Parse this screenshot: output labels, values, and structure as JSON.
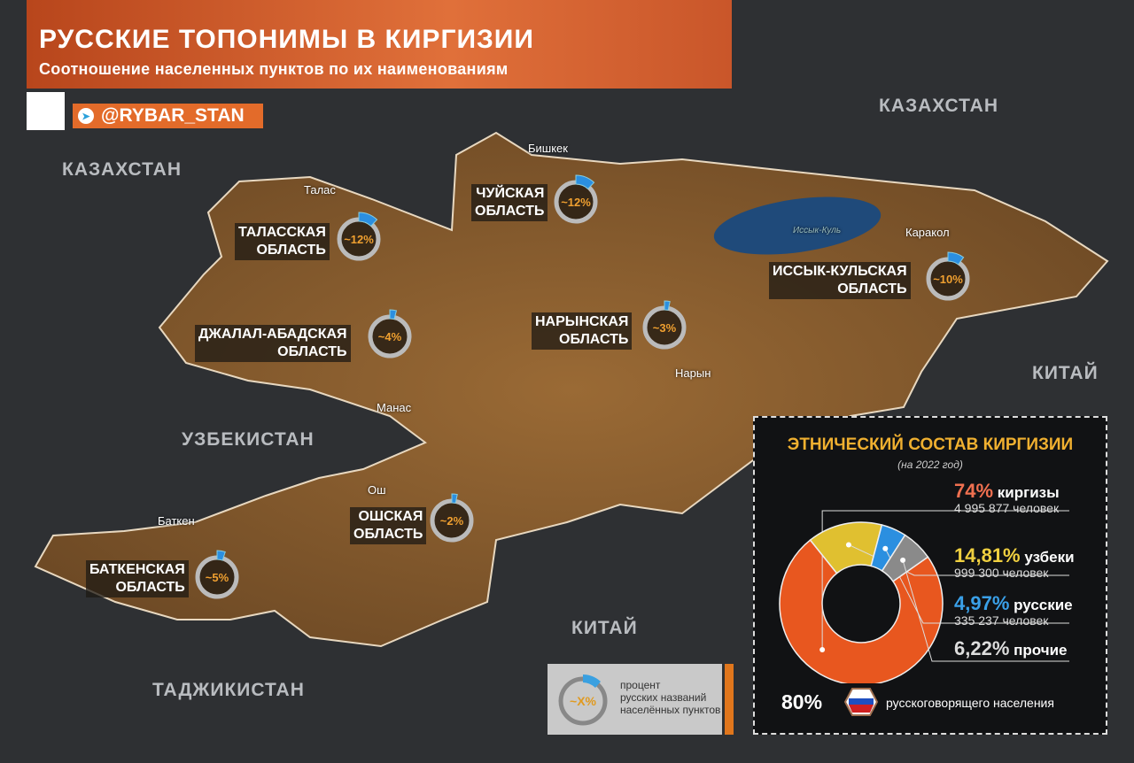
{
  "header": {
    "title": "РУССКИЕ ТОПОНИМЫ В КИРГИЗИИ",
    "subtitle": "Соотношение населенных пунктов по их наименованиям",
    "channel": "@RYBAR_STAN",
    "telegram_icon": "telegram-icon"
  },
  "countries": [
    {
      "name": "КАЗАХСТАН"
    },
    {
      "name": "КАЗАХСТАН"
    },
    {
      "name": "КИТАЙ"
    },
    {
      "name": "УЗБЕКИСТАН"
    },
    {
      "name": "КИТАЙ"
    },
    {
      "name": "ТАДЖИКИСТАН"
    }
  ],
  "cities": [
    "Бишкек",
    "Талас",
    "Каракол",
    "Нарын",
    "Манас",
    "Ош",
    "Баткен"
  ],
  "lake": "Иссык-Куль",
  "regions": [
    {
      "name": "ТАЛАССКАЯ\nОБЛАСТЬ",
      "value": "~12%",
      "percent": 12
    },
    {
      "name": "ЧУЙСКАЯ\nОБЛАСТЬ",
      "value": "~12%",
      "percent": 12
    },
    {
      "name": "ИССЫК-КУЛЬСКАЯ\nОБЛАСТЬ",
      "value": "~10%",
      "percent": 10
    },
    {
      "name": "ДЖАЛАЛ-АБАДСКАЯ\nОБЛАСТЬ",
      "value": "~4%",
      "percent": 4
    },
    {
      "name": "НАРЫНСКАЯ\nОБЛАСТЬ",
      "value": "~3%",
      "percent": 3
    },
    {
      "name": "ОШСКАЯ\nОБЛАСТЬ",
      "value": "~2%",
      "percent": 2
    },
    {
      "name": "БАТКЕНСКАЯ\nОБЛАСТЬ",
      "value": "~5%",
      "percent": 5
    }
  ],
  "legend": {
    "symbol": "~X%",
    "text": "процент\nрусских названий\nнаселённых пунктов"
  },
  "panel": {
    "title": "ЭТНИЧЕСКИЙ СОСТАВ КИРГИЗИИ",
    "year": "(на 2022 год)",
    "chart_data": {
      "type": "pie",
      "donut": true,
      "slices": [
        {
          "pct": "74%",
          "label": "киргизы",
          "count": "4 995 877 человек",
          "value": 74,
          "color": "#e8571f"
        },
        {
          "pct": "14,81%",
          "label": "узбеки",
          "count": "999 300 человек",
          "value": 14.81,
          "color": "#e0c030"
        },
        {
          "pct": "4,97%",
          "label": "русские",
          "count": "335 237 человек",
          "value": 4.97,
          "color": "#2b8fe0"
        },
        {
          "pct": "6,22%",
          "label": "прочие",
          "count": "",
          "value": 6.22,
          "color": "#8a8a8a"
        }
      ]
    },
    "russian_speaking_pct": "80%",
    "russian_speaking_text": "русскоговорящего населения"
  }
}
